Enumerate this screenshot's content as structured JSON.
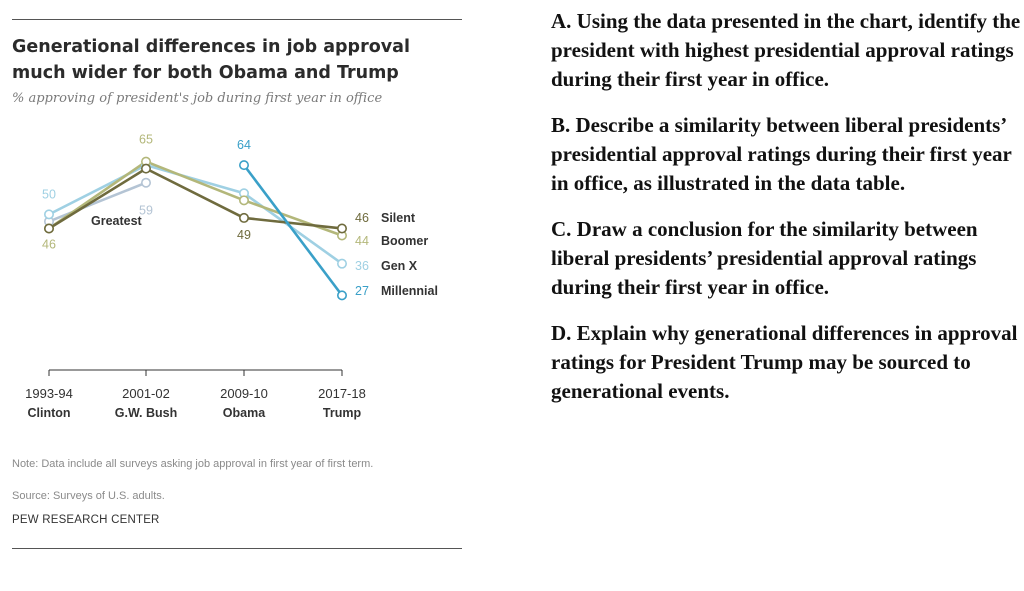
{
  "chart_data": {
    "type": "line",
    "title": "Generational differences in job approval much wider for both Obama and Trump",
    "subtitle": "% approving of president's job during first year in office",
    "categories": [
      "1993-94",
      "2001-02",
      "2009-10",
      "2017-18"
    ],
    "category_sublabels": [
      "Clinton",
      "G.W. Bush",
      "Obama",
      "Trump"
    ],
    "ylim": [
      20,
      70
    ],
    "series": [
      {
        "name": "Silent",
        "color": "#6f6b3e",
        "values": [
          46,
          63,
          49,
          46
        ]
      },
      {
        "name": "Boomer",
        "color": "#b3b77a",
        "values": [
          46,
          65,
          54,
          44
        ]
      },
      {
        "name": "Gen X",
        "color": "#9fd0e3",
        "values": [
          50,
          64,
          56,
          36
        ]
      },
      {
        "name": "Millennial",
        "color": "#3aa0c8",
        "values": [
          null,
          null,
          64,
          27
        ]
      },
      {
        "name": "Greatest",
        "color": "#b4c4d4",
        "values": [
          48,
          59,
          null,
          null
        ]
      }
    ],
    "data_labels": [
      {
        "text": "65",
        "series": "Boomer",
        "index": 1,
        "color": "#b3b77a"
      },
      {
        "text": "64",
        "series": "Millennial",
        "index": 2,
        "color": "#3aa0c8"
      },
      {
        "text": "50",
        "series": "Gen X",
        "index": 0,
        "color": "#9fd0e3"
      },
      {
        "text": "46",
        "series": "Boomer",
        "index": 0,
        "color": "#b3b77a"
      },
      {
        "text": "59",
        "series": "Greatest",
        "index": 1,
        "color": "#b4c4d4"
      },
      {
        "text": "49",
        "series": "Silent",
        "index": 2,
        "color": "#6f6b3e"
      },
      {
        "text": "46",
        "series": "Silent",
        "index": 3,
        "color": "#6f6b3e"
      },
      {
        "text": "44",
        "series": "Boomer",
        "index": 3,
        "color": "#b3b77a"
      },
      {
        "text": "36",
        "series": "Gen X",
        "index": 3,
        "color": "#9fd0e3"
      },
      {
        "text": "27",
        "series": "Millennial",
        "index": 3,
        "color": "#3aa0c8"
      }
    ],
    "end_labels": [
      {
        "value": "46",
        "name": "Silent"
      },
      {
        "value": "44",
        "name": "Boomer"
      },
      {
        "value": "36",
        "name": "Gen X"
      },
      {
        "value": "27",
        "name": "Millennial"
      }
    ],
    "inline_labels": [
      {
        "text": "Greatest",
        "series": "Greatest"
      }
    ],
    "grid": false,
    "legend": "inline"
  },
  "footer": {
    "note": "Note: Data include all surveys asking job approval in first year of first term.",
    "source": "Source: Surveys of U.S. adults.",
    "brand": "PEW RESEARCH CENTER"
  },
  "questions": [
    "A. Using the data presented in the chart, identify the president with highest presidential approval ratings during their first year in office.",
    "B. Describe a similarity between liberal presidents’ presidential approval ratings during their first year in office, as illustrated in the data table.",
    "C. Draw a conclusion for the similarity between liberal presidents’ presidential approval ratings during their first year in office.",
    "D. Explain why generational differences in approval ratings for President Trump may be sourced to generational events."
  ]
}
